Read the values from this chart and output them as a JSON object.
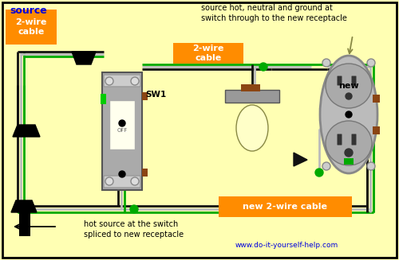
{
  "bg": "#FFFFB3",
  "black": "#111111",
  "white_wire": "#BBBBBB",
  "green": "#00AA00",
  "orange": "#FF8C00",
  "blue_text": "#0000DD",
  "gray_device": "#AAAAAA",
  "brown": "#8B4513",
  "dark_gray": "#666666",
  "source_text": "source",
  "cable1_text": "2-wire\ncable",
  "cable2_text": "2-wire\ncable",
  "cable3_text": "new 2-wire cable",
  "new_text": "new",
  "sw_text": "SW1",
  "off_text": "OFF",
  "ann1": "source hot, neutral and ground at\nswitch through to the new receptacle",
  "ann2": "hot source at the switch\nspliced to new receptacle",
  "website": "www.do-it-yourself-help.com"
}
